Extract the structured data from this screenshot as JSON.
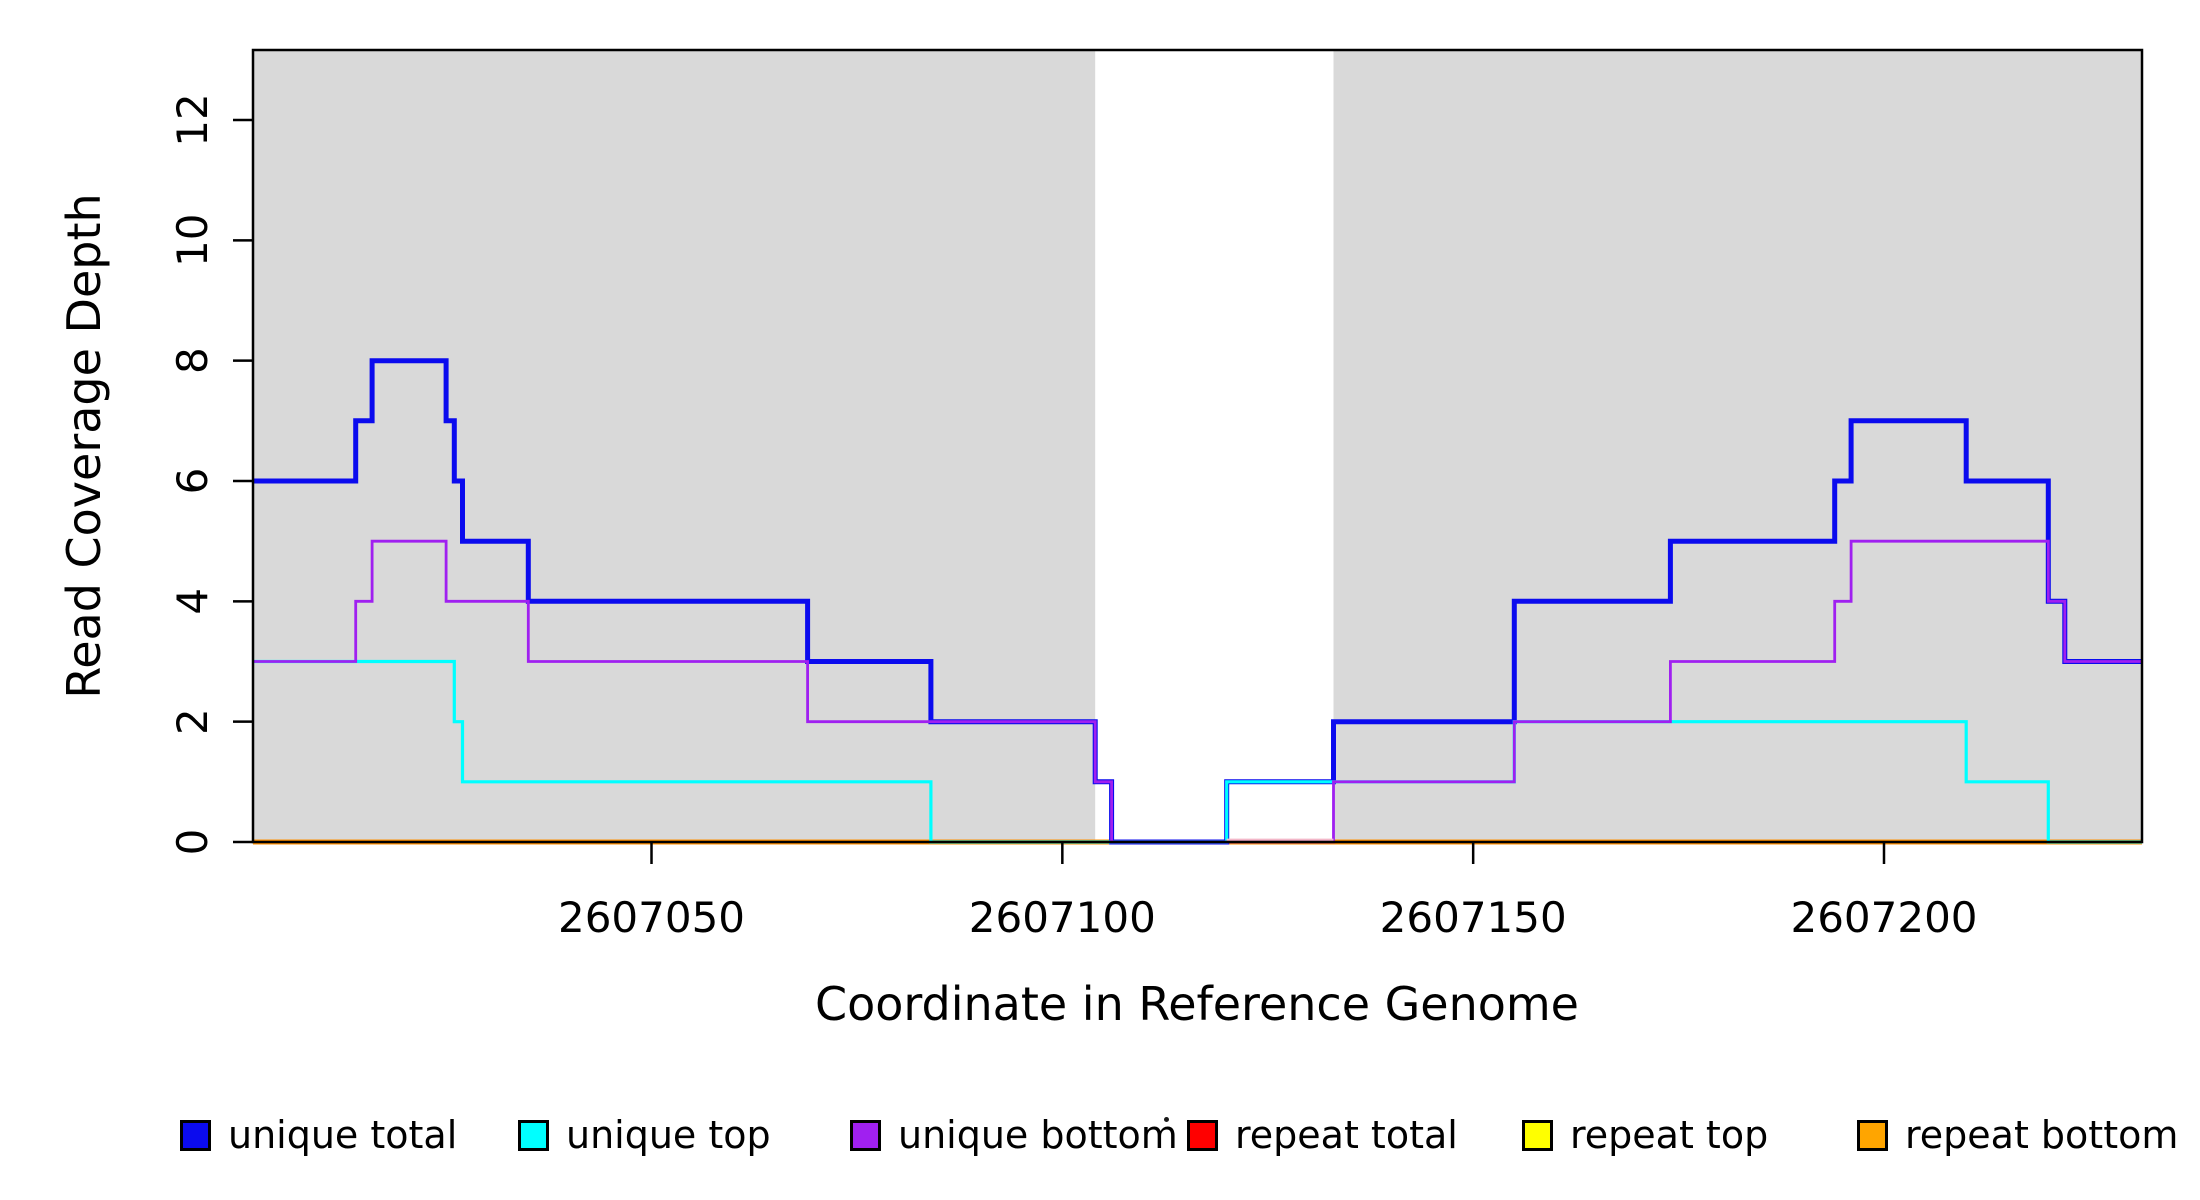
{
  "chart_data": {
    "type": "step-line",
    "title": "",
    "xlabel": "Coordinate in Reference Genome",
    "ylabel": "Read Coverage Depth",
    "xlim": [
      2607001.5,
      2607231.4
    ],
    "ylim": [
      0,
      13.163
    ],
    "grid": false,
    "x_ticks": [
      {
        "value": 2607050,
        "label": "2607050"
      },
      {
        "value": 2607100,
        "label": "2607100"
      },
      {
        "value": 2607150,
        "label": "2607150"
      },
      {
        "value": 2607200,
        "label": "2607200"
      }
    ],
    "y_ticks": [
      {
        "value": 0,
        "label": "0"
      },
      {
        "value": 2,
        "label": "2"
      },
      {
        "value": 4,
        "label": "4"
      },
      {
        "value": 6,
        "label": "6"
      },
      {
        "value": 8,
        "label": "8"
      },
      {
        "value": 10,
        "label": "10"
      },
      {
        "value": 12,
        "label": "12"
      }
    ],
    "shaded_regions": [
      {
        "name": "left-unique-region",
        "x0": 2607001.5,
        "x1": 2607104,
        "color": "#d9d9d9"
      },
      {
        "name": "right-unique-region",
        "x0": 2607133,
        "x1": 2607231.4,
        "color": "#d9d9d9"
      }
    ],
    "x_end": 2607231.4,
    "series": [
      {
        "name": "repeat total",
        "color": "#ff0000",
        "width": 2.2,
        "points": [
          [
            2607001.5,
            0
          ]
        ]
      },
      {
        "name": "repeat top",
        "color": "#ffff00",
        "width": 2.2,
        "points": [
          [
            2607001.5,
            0
          ]
        ]
      },
      {
        "name": "repeat bottom",
        "color": "#ff8f00",
        "width": 5,
        "points": [
          [
            2607001.5,
            0
          ]
        ]
      },
      {
        "name": "unique total",
        "color": "#0b0bee",
        "width": 5,
        "points": [
          [
            2607001.5,
            6
          ],
          [
            2607014,
            7
          ],
          [
            2607016,
            8
          ],
          [
            2607025,
            7
          ],
          [
            2607026,
            6
          ],
          [
            2607027,
            5
          ],
          [
            2607035,
            4
          ],
          [
            2607069,
            3
          ],
          [
            2607084,
            2
          ],
          [
            2607104,
            1
          ],
          [
            2607106,
            0
          ],
          [
            2607120,
            1
          ],
          [
            2607133,
            2
          ],
          [
            2607155,
            4
          ],
          [
            2607174,
            5
          ],
          [
            2607194,
            6
          ],
          [
            2607196,
            7
          ],
          [
            2607210,
            6
          ],
          [
            2607220,
            4
          ],
          [
            2607222,
            3
          ]
        ]
      },
      {
        "name": "unique top",
        "color": "#00ffff",
        "width": 3.2,
        "points": [
          [
            2607001.5,
            3
          ],
          [
            2607026,
            2
          ],
          [
            2607027,
            1
          ],
          [
            2607084,
            0
          ],
          [
            2607120,
            1
          ],
          [
            2607155,
            2
          ],
          [
            2607210,
            1
          ],
          [
            2607220,
            0
          ]
        ]
      },
      {
        "name": "unique bottom",
        "color": "#a020f0",
        "width": 2.8,
        "points": [
          [
            2607001.5,
            3
          ],
          [
            2607014,
            4
          ],
          [
            2607016,
            5
          ],
          [
            2607025,
            4
          ],
          [
            2607035,
            3
          ],
          [
            2607069,
            2
          ],
          [
            2607104,
            1
          ],
          [
            2607106,
            0
          ],
          [
            2607133,
            1
          ],
          [
            2607155,
            2
          ],
          [
            2607174,
            3
          ],
          [
            2607194,
            4
          ],
          [
            2607196,
            5
          ],
          [
            2607220,
            4
          ],
          [
            2607222,
            3
          ]
        ]
      }
    ],
    "zero_line_overlay": {
      "note": "pale red blend of repeat-total line visible on zero line inside the unshaded gap",
      "x0": 2607120,
      "x1": 2607133,
      "y": 0,
      "color_light": "#f3b7c9",
      "color_core": "#c6417e"
    },
    "legend": [
      {
        "label": "unique total",
        "color": "#0b0bee"
      },
      {
        "label": "unique top",
        "color": "#00ffff"
      },
      {
        "label": "unique bottom",
        "color": "#a020f0"
      },
      {
        "label": "repeat total",
        "color": "#ff0000"
      },
      {
        "label": "repeat top",
        "color": "#ffff00"
      },
      {
        "label": "repeat bottom",
        "color": "#ffa500"
      }
    ],
    "axis_color": "#000000",
    "plot_background": "#ffffff"
  }
}
